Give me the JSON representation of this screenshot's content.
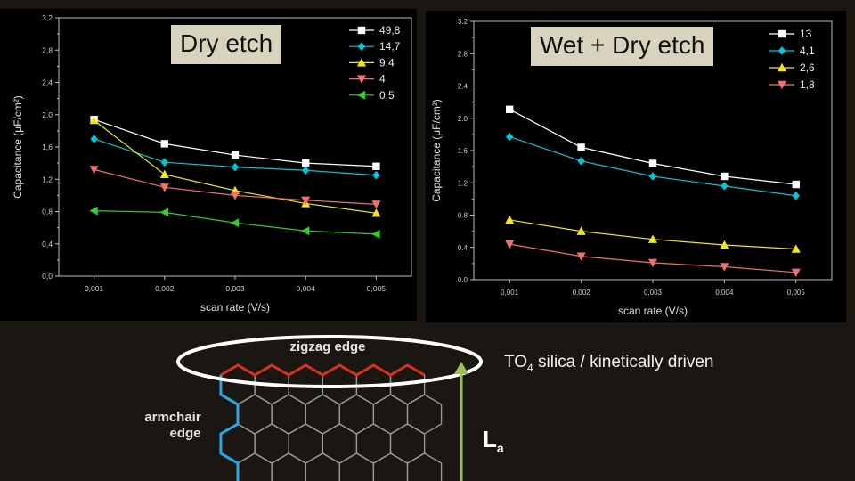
{
  "chart_data": [
    {
      "type": "line",
      "title": "Dry etch",
      "xlabel": "scan rate (V/s)",
      "ylabel": "Capacitance (μF/cm²)",
      "x": [
        "0,001",
        "0,002",
        "0,003",
        "0,004",
        "0,005"
      ],
      "x_values": [
        0.001,
        0.002,
        0.003,
        0.004,
        0.005
      ],
      "xlim": [
        0.0005,
        0.0055
      ],
      "ylim": [
        0,
        3.2
      ],
      "yticks": [
        "0,0",
        "0,4",
        "0,8",
        "1,2",
        "1,6",
        "2,0",
        "2,4",
        "2,8",
        "3,2"
      ],
      "ytick_values": [
        0,
        0.4,
        0.8,
        1.2,
        1.6,
        2.0,
        2.4,
        2.8,
        3.2
      ],
      "legend_position": "top-right",
      "series": [
        {
          "name": "49,8",
          "color": "#ffffff",
          "marker": "square",
          "values": [
            1.94,
            1.64,
            1.5,
            1.4,
            1.36
          ]
        },
        {
          "name": "14,7",
          "color": "#00c8d8",
          "marker": "diamond",
          "values": [
            1.7,
            1.41,
            1.35,
            1.31,
            1.25
          ]
        },
        {
          "name": "9,4",
          "color": "#f2e619",
          "marker": "triangle-up",
          "values": [
            1.93,
            1.26,
            1.06,
            0.9,
            0.78
          ]
        },
        {
          "name": "4",
          "color": "#f07070",
          "marker": "triangle-down",
          "values": [
            1.32,
            1.1,
            1.0,
            0.94,
            0.89
          ]
        },
        {
          "name": "0,5",
          "color": "#33cc33",
          "marker": "triangle-left",
          "values": [
            0.81,
            0.79,
            0.66,
            0.56,
            0.52
          ]
        }
      ]
    },
    {
      "type": "line",
      "title": "Wet + Dry etch",
      "xlabel": "scan rate (V/s)",
      "ylabel": "Capacitance (μF/cm²)",
      "x": [
        "0,001",
        "0,002",
        "0,003",
        "0,004",
        "0,005"
      ],
      "x_values": [
        0.001,
        0.002,
        0.003,
        0.004,
        0.005
      ],
      "xlim": [
        0.0005,
        0.0055
      ],
      "ylim": [
        0,
        3.2
      ],
      "yticks": [
        "0.0",
        "0.4",
        "0.8",
        "1.2",
        "1.6",
        "2.0",
        "2.4",
        "2.8",
        "3.2"
      ],
      "ytick_values": [
        0,
        0.4,
        0.8,
        1.2,
        1.6,
        2.0,
        2.4,
        2.8,
        3.2
      ],
      "legend_position": "top-right",
      "series": [
        {
          "name": "13",
          "color": "#ffffff",
          "marker": "square",
          "values": [
            2.11,
            1.64,
            1.44,
            1.28,
            1.18
          ]
        },
        {
          "name": "4,1",
          "color": "#00c8d8",
          "marker": "diamond",
          "values": [
            1.77,
            1.47,
            1.28,
            1.16,
            1.04
          ]
        },
        {
          "name": "2,6",
          "color": "#f2e619",
          "marker": "triangle-up",
          "values": [
            0.74,
            0.6,
            0.5,
            0.43,
            0.38
          ]
        },
        {
          "name": "1,8",
          "color": "#f07070",
          "marker": "triangle-down",
          "values": [
            0.44,
            0.29,
            0.21,
            0.16,
            0.09
          ]
        }
      ]
    }
  ],
  "annotations": {
    "zigzag_label": "zigzag edge",
    "armchair_label_1": "armchair",
    "armchair_label_2": "edge",
    "caption_prefix": "TO",
    "caption_sub": "4",
    "caption_rest": " silica / kinetically driven",
    "la_main": "L",
    "la_sub": "a"
  },
  "colors": {
    "zigzag_edge": "#d9311e",
    "armchair_edge": "#2aa7e8",
    "lattice": "#9a9a9a",
    "arrow": "#9cbf5a",
    "ellipse": "#ffffff",
    "title_box": "#d8d3bd"
  }
}
